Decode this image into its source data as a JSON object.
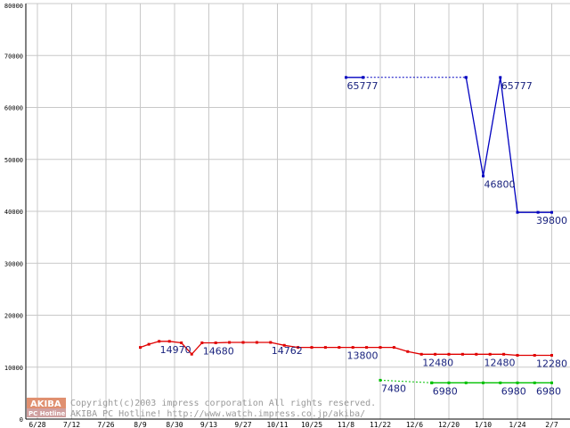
{
  "chart_data": {
    "type": "line",
    "title": "",
    "xlabel": "",
    "ylabel": "",
    "x_ticks": [
      "6/28",
      "7/12",
      "7/26",
      "8/9",
      "8/30",
      "9/13",
      "9/27",
      "10/11",
      "10/25",
      "11/8",
      "11/22",
      "12/6",
      "12/20",
      "1/10",
      "1/24",
      "2/7"
    ],
    "y_ticks": [
      "0",
      "10000",
      "20000",
      "30000",
      "40000",
      "50000",
      "60000",
      "70000",
      "80000"
    ],
    "ylim": [
      0,
      80000
    ],
    "grid": true,
    "series": [
      {
        "color": "#0000c0",
        "segments": [
          {
            "style": "solid",
            "points": [
              [
                9.0,
                65777
              ],
              [
                9.5,
                65777
              ]
            ]
          },
          {
            "style": "dotted",
            "points": [
              [
                9.5,
                65777
              ],
              [
                12.5,
                65777
              ]
            ]
          },
          {
            "style": "solid",
            "points": [
              [
                12.5,
                65777
              ],
              [
                13.0,
                46800
              ],
              [
                13.5,
                65777
              ],
              [
                14.0,
                39800
              ],
              [
                14.6,
                39800
              ],
              [
                15.0,
                39800
              ]
            ]
          }
        ],
        "labels": [
          {
            "text": "65777",
            "at": [
              9.0,
              65777
            ]
          },
          {
            "text": "65777",
            "at": [
              13.5,
              65777
            ]
          },
          {
            "text": "46800",
            "at": [
              13.0,
              46800
            ]
          },
          {
            "text": "39800",
            "at": [
              15.0,
              39800
            ]
          }
        ]
      },
      {
        "color": "#e00000",
        "segments": [
          {
            "style": "solid",
            "points": [
              [
                3.0,
                13800
              ],
              [
                3.25,
                14400
              ],
              [
                3.55,
                14970
              ],
              [
                3.85,
                14970
              ],
              [
                4.2,
                14680
              ],
              [
                4.5,
                12500
              ],
              [
                4.8,
                14680
              ],
              [
                5.2,
                14680
              ],
              [
                5.6,
                14762
              ],
              [
                6.0,
                14762
              ],
              [
                6.4,
                14762
              ],
              [
                6.8,
                14762
              ],
              [
                7.2,
                14200
              ],
              [
                7.6,
                13800
              ],
              [
                8.0,
                13800
              ],
              [
                8.4,
                13800
              ],
              [
                8.8,
                13800
              ],
              [
                9.2,
                13800
              ],
              [
                9.6,
                13800
              ],
              [
                10.0,
                13800
              ],
              [
                10.4,
                13800
              ],
              [
                10.8,
                13000
              ],
              [
                11.2,
                12480
              ],
              [
                11.6,
                12480
              ],
              [
                12.0,
                12480
              ],
              [
                12.4,
                12480
              ],
              [
                12.8,
                12480
              ],
              [
                13.2,
                12480
              ],
              [
                13.6,
                12480
              ],
              [
                14.0,
                12280
              ],
              [
                14.5,
                12280
              ],
              [
                15.0,
                12280
              ]
            ]
          }
        ],
        "labels": [
          {
            "text": "14970",
            "at": [
              3.55,
              14970
            ]
          },
          {
            "text": "14680",
            "at": [
              4.8,
              14680
            ]
          },
          {
            "text": "14762",
            "at": [
              6.8,
              14762
            ]
          },
          {
            "text": "13800",
            "at": [
              9.0,
              13800
            ]
          },
          {
            "text": "12480",
            "at": [
              11.2,
              12480
            ]
          },
          {
            "text": "12480",
            "at": [
              13.0,
              12480
            ]
          },
          {
            "text": "12280",
            "at": [
              14.6,
              12280
            ]
          }
        ]
      },
      {
        "color": "#00c000",
        "segments": [
          {
            "style": "dotted",
            "points": [
              [
                10.0,
                7480
              ],
              [
                11.5,
                6980
              ]
            ]
          },
          {
            "style": "solid",
            "points": [
              [
                11.5,
                6980
              ],
              [
                12.0,
                6980
              ],
              [
                12.5,
                6980
              ],
              [
                13.0,
                6980
              ],
              [
                13.5,
                6980
              ],
              [
                14.0,
                6980
              ],
              [
                14.5,
                6980
              ],
              [
                15.0,
                6980
              ]
            ]
          }
        ],
        "labels": [
          {
            "text": "7480",
            "at": [
              10.0,
              7480
            ]
          },
          {
            "text": "6980",
            "at": [
              11.5,
              6980
            ]
          },
          {
            "text": "6980",
            "at": [
              13.5,
              6980
            ]
          },
          {
            "text": "6980",
            "at": [
              15.0,
              6980
            ]
          }
        ]
      }
    ]
  },
  "watermark": {
    "logo_top": "AKIBA",
    "logo_bottom": "PC Hotline!",
    "line1": "Copyright(c)2003 impress corporation All rights reserved.",
    "line2": "AKIBA PC Hotline! http://www.watch.impress.co.jp/akiba/"
  }
}
